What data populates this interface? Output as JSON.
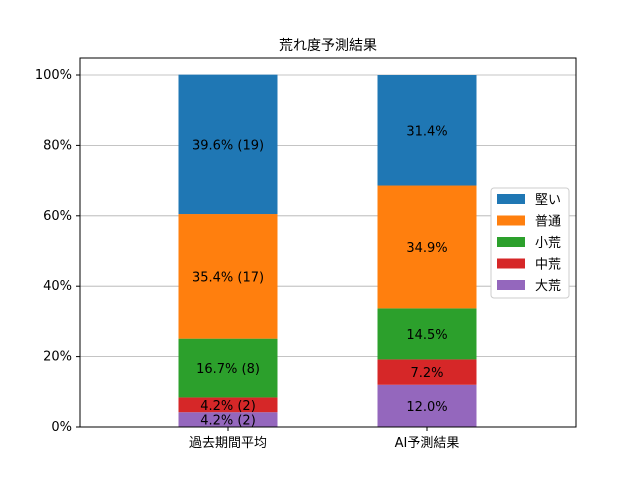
{
  "chart_data": {
    "type": "bar",
    "stacked": true,
    "title": "荒れ度予測結果",
    "xlabel": "",
    "ylabel": "",
    "categories": [
      "過去期間平均",
      "AI予測結果"
    ],
    "ylim": [
      0,
      100
    ],
    "yticks": [
      "0%",
      "20%",
      "40%",
      "60%",
      "80%",
      "100%"
    ],
    "grid": "y",
    "legend_position": "center-right",
    "series": [
      {
        "name": "大荒",
        "color": "#9467bd",
        "values": [
          4.2,
          12.0
        ],
        "labels": [
          "4.2% (2)",
          "12.0%"
        ]
      },
      {
        "name": "中荒",
        "color": "#d62728",
        "values": [
          4.2,
          7.2
        ],
        "labels": [
          "4.2% (2)",
          "7.2%"
        ]
      },
      {
        "name": "小荒",
        "color": "#2ca02c",
        "values": [
          16.7,
          14.5
        ],
        "labels": [
          "16.7% (8)",
          "14.5%"
        ]
      },
      {
        "name": "普通",
        "color": "#ff7f0e",
        "values": [
          35.4,
          34.9
        ],
        "labels": [
          "35.4% (17)",
          "34.9%"
        ]
      },
      {
        "name": "堅い",
        "color": "#1f77b4",
        "values": [
          39.6,
          31.4
        ],
        "labels": [
          "39.6% (19)",
          "31.4%"
        ]
      }
    ],
    "legend_order": [
      "堅い",
      "普通",
      "小荒",
      "中荒",
      "大荒"
    ]
  }
}
